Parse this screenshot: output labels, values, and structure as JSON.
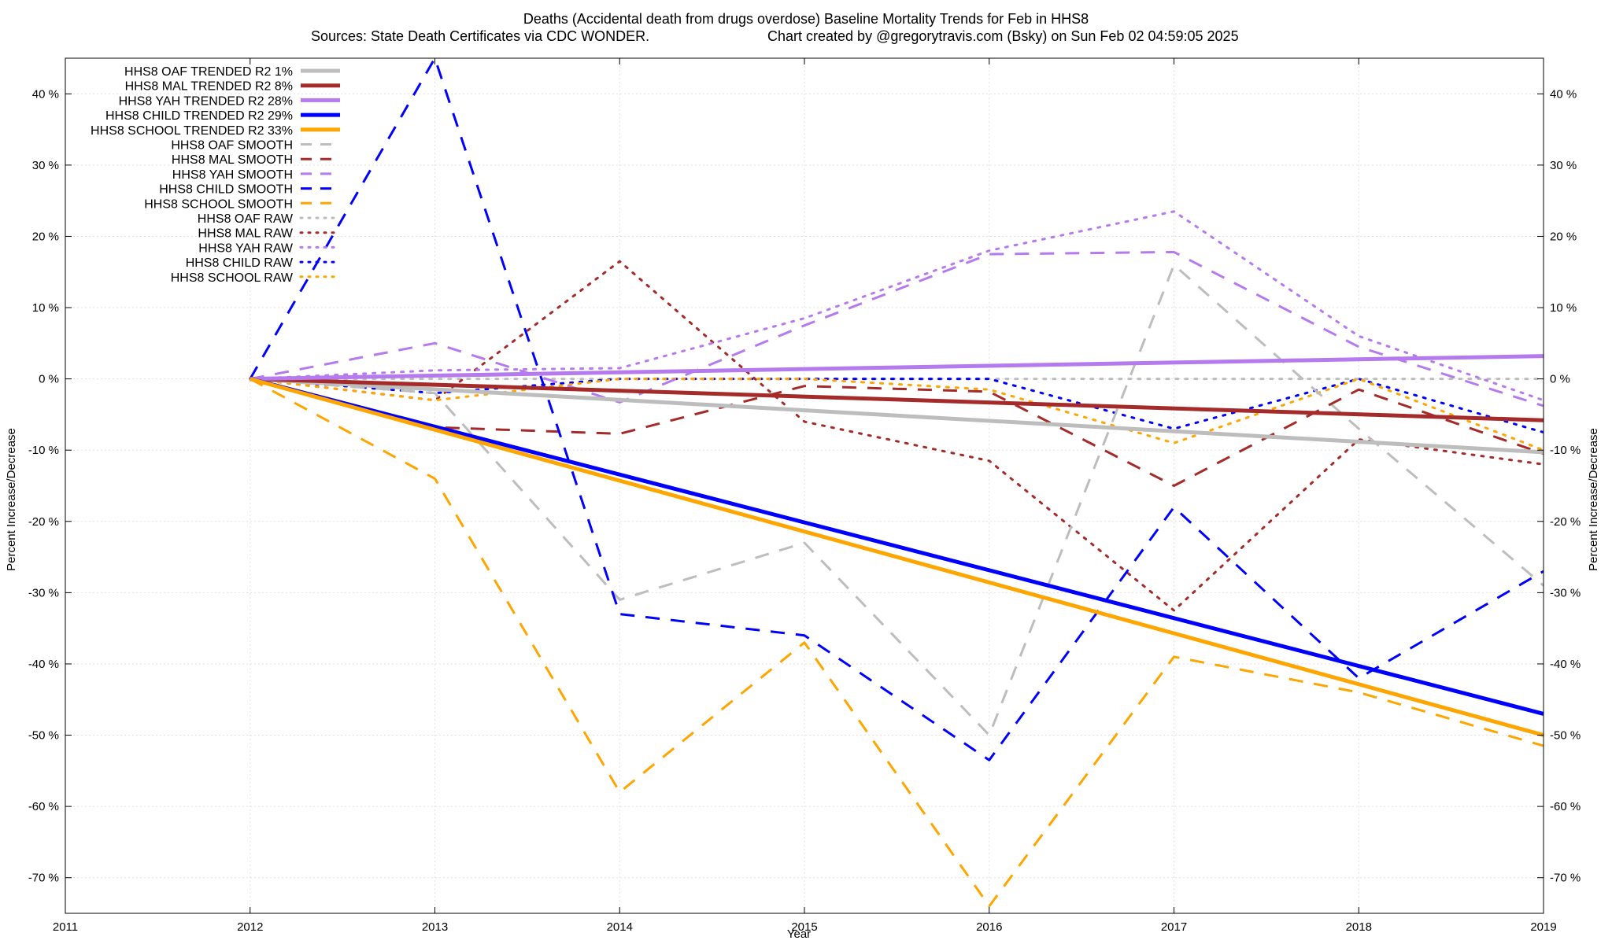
{
  "chart_data": {
    "type": "line",
    "title": "Deaths (Accidental death from drugs overdose)  Baseline Mortality Trends for Feb in HHS8",
    "subtitle_left": "Sources: State Death Certificates via CDC WONDER.",
    "subtitle_right": "Chart created by @gregorytravis.com (Bsky) on Sun Feb 02 04:59:05 2025",
    "xlabel": "Year",
    "ylabel": "Percent Increase/Decrease",
    "y2label": "Percent Increase/Decrease",
    "xlim": [
      2011,
      2019
    ],
    "ylim": [
      -75,
      45
    ],
    "x_ticks": [
      2011,
      2012,
      2013,
      2014,
      2015,
      2016,
      2017,
      2018,
      2019
    ],
    "x_tick_labels": [
      "2011",
      "2012",
      "2013",
      "2014",
      "2015",
      "2016",
      "2017",
      "2018",
      "2019"
    ],
    "y_ticks": [
      40,
      30,
      20,
      10,
      0,
      -10,
      -20,
      -30,
      -40,
      -50,
      -60,
      -70
    ],
    "y_tick_labels": [
      "40 %",
      "30 %",
      "20 %",
      "10 %",
      "0 %",
      "-10 %",
      "-20 %",
      "-30 %",
      "-40 %",
      "-50 %",
      "-60 %",
      "-70 %"
    ],
    "grid": true,
    "legend_position": "top-left",
    "series": [
      {
        "name": "HHS8 OAF TRENDED R2   1%",
        "style": "solid",
        "width": 5,
        "color": "#bdbdbd",
        "x": [
          2012,
          2019
        ],
        "values": [
          0,
          -10.3
        ]
      },
      {
        "name": "HHS8 MAL TRENDED R2   8%",
        "style": "solid",
        "width": 5,
        "color": "#a52a2a",
        "x": [
          2012,
          2019
        ],
        "values": [
          0,
          -5.8
        ]
      },
      {
        "name": "HHS8 YAH TRENDED R2  28%",
        "style": "solid",
        "width": 5,
        "color": "#b57aee",
        "x": [
          2012,
          2019
        ],
        "values": [
          0,
          3.2
        ]
      },
      {
        "name": "HHS8 CHILD TRENDED R2  29%",
        "style": "solid",
        "width": 5,
        "color": "#0000ff",
        "x": [
          2012,
          2019
        ],
        "values": [
          0,
          -47
        ]
      },
      {
        "name": "HHS8 SCHOOL TRENDED R2  33%",
        "style": "solid",
        "width": 5,
        "color": "#ffa500",
        "x": [
          2012,
          2019
        ],
        "values": [
          0,
          -50
        ]
      },
      {
        "name": "HHS8 OAF SMOOTH",
        "style": "dashed",
        "width": 3,
        "color": "#bdbdbd",
        "x": [
          2012,
          2013,
          2014,
          2015,
          2016,
          2017,
          2018,
          2019
        ],
        "values": [
          0,
          -2,
          -31,
          -23,
          -50,
          16,
          -7,
          -29
        ]
      },
      {
        "name": "HHS8 MAL SMOOTH",
        "style": "dashed",
        "width": 3,
        "color": "#a52a2a",
        "x": [
          2012,
          2013,
          2014,
          2015,
          2016,
          2017,
          2018,
          2019
        ],
        "values": [
          0,
          -6.8,
          -7.7,
          -1,
          -1.8,
          -15,
          -1.5,
          -10.5
        ]
      },
      {
        "name": "HHS8 YAH SMOOTH",
        "style": "dashed",
        "width": 3,
        "color": "#b57aee",
        "x": [
          2012,
          2013,
          2014,
          2015,
          2016,
          2017,
          2018,
          2019
        ],
        "values": [
          0,
          5,
          -3.3,
          7.5,
          17.5,
          17.8,
          4.5,
          -3.8
        ]
      },
      {
        "name": "HHS8 CHILD SMOOTH",
        "style": "dashed",
        "width": 3,
        "color": "#0000ff",
        "x": [
          2012,
          2013,
          2014,
          2015,
          2016,
          2017,
          2018,
          2019
        ],
        "values": [
          0,
          45,
          -33,
          -36,
          -53.5,
          -18,
          -42,
          -27
        ]
      },
      {
        "name": "HHS8 SCHOOL SMOOTH",
        "style": "dashed",
        "width": 3,
        "color": "#ffa500",
        "x": [
          2012,
          2013,
          2014,
          2015,
          2016,
          2017,
          2018,
          2019
        ],
        "values": [
          0,
          -14,
          -58,
          -37,
          -74,
          -39,
          -44,
          -51.5
        ]
      },
      {
        "name": "HHS8 OAF RAW",
        "style": "dotted",
        "width": 3,
        "color": "#bdbdbd",
        "x": [
          2012,
          2013,
          2014,
          2015,
          2016,
          2017,
          2018,
          2019
        ],
        "values": [
          0,
          0,
          0,
          0,
          0,
          0,
          0,
          0
        ]
      },
      {
        "name": "HHS8 MAL RAW",
        "style": "dotted",
        "width": 3,
        "color": "#a52a2a",
        "x": [
          2012,
          2013,
          2014,
          2015,
          2016,
          2017,
          2018,
          2019
        ],
        "values": [
          0,
          -3,
          16.5,
          -6,
          -11.5,
          -32.5,
          -8.5,
          -12
        ]
      },
      {
        "name": "HHS8 YAH RAW",
        "style": "dotted",
        "width": 3,
        "color": "#b57aee",
        "x": [
          2012,
          2013,
          2014,
          2015,
          2016,
          2017,
          2018,
          2019
        ],
        "values": [
          0,
          1.2,
          1.5,
          8.5,
          18,
          23.5,
          6,
          -3
        ]
      },
      {
        "name": "HHS8 CHILD RAW",
        "style": "dotted",
        "width": 3,
        "color": "#0000ff",
        "x": [
          2012,
          2013,
          2014,
          2015,
          2016,
          2017,
          2018,
          2019
        ],
        "values": [
          0,
          -2,
          0,
          0,
          0,
          -7,
          0,
          -7.5
        ]
      },
      {
        "name": "HHS8 SCHOOL RAW",
        "style": "dotted",
        "width": 3,
        "color": "#ffa500",
        "x": [
          2012,
          2013,
          2014,
          2015,
          2016,
          2017,
          2018,
          2019
        ],
        "values": [
          0,
          -3,
          0,
          0,
          -1.5,
          -9,
          0,
          -10
        ]
      }
    ]
  }
}
